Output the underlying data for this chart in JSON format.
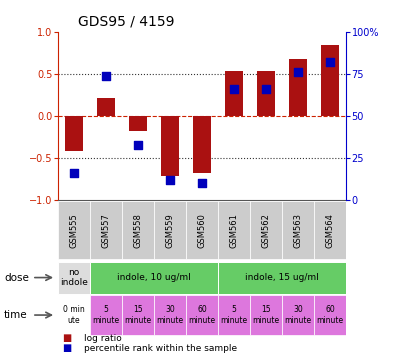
{
  "title": "GDS95 / 4159",
  "samples": [
    "GSM555",
    "GSM557",
    "GSM558",
    "GSM559",
    "GSM560",
    "GSM561",
    "GSM562",
    "GSM563",
    "GSM564"
  ],
  "log_ratio": [
    -0.42,
    0.22,
    -0.18,
    -0.72,
    -0.68,
    0.54,
    0.54,
    0.68,
    0.85
  ],
  "percentile": [
    16,
    74,
    33,
    12,
    10,
    66,
    66,
    76,
    82
  ],
  "ylim_left": [
    -1,
    1
  ],
  "ylim_right": [
    0,
    100
  ],
  "yticks_left": [
    -1,
    -0.5,
    0,
    0.5,
    1
  ],
  "yticks_right": [
    0,
    25,
    50,
    75,
    100
  ],
  "hlines_dotted": [
    -0.5,
    0.5
  ],
  "hline_zero": 0,
  "bar_color": "#aa1111",
  "dot_color": "#0000bb",
  "dot_size": 28,
  "sample_row_color": "#cccccc",
  "dose_spans": [
    {
      "text": "no\nindole",
      "start": 0,
      "end": 1,
      "color": "#dddddd"
    },
    {
      "text": "indole, 10 ug/ml",
      "start": 1,
      "end": 5,
      "color": "#66cc66"
    },
    {
      "text": "indole, 15 ug/ml",
      "start": 5,
      "end": 9,
      "color": "#66cc66"
    }
  ],
  "time_texts": [
    "0 min\nute",
    "5\nminute",
    "15\nminute",
    "30\nminute",
    "60\nminute",
    "5\nminute",
    "15\nminute",
    "30\nminute",
    "60\nminute"
  ],
  "time_colors": [
    "#ffffff",
    "#dd77dd",
    "#dd77dd",
    "#dd77dd",
    "#dd77dd",
    "#dd77dd",
    "#dd77dd",
    "#dd77dd",
    "#dd77dd"
  ],
  "dose_row_label": "dose",
  "time_row_label": "time",
  "legend_items": [
    {
      "label": "log ratio",
      "color": "#aa1111"
    },
    {
      "label": "percentile rank within the sample",
      "color": "#0000bb"
    }
  ],
  "left_axis_color": "#cc2200",
  "right_axis_color": "#0000cc",
  "background_color": "#ffffff",
  "zero_line_color": "#cc2200",
  "fig_width": 4.0,
  "fig_height": 3.57
}
